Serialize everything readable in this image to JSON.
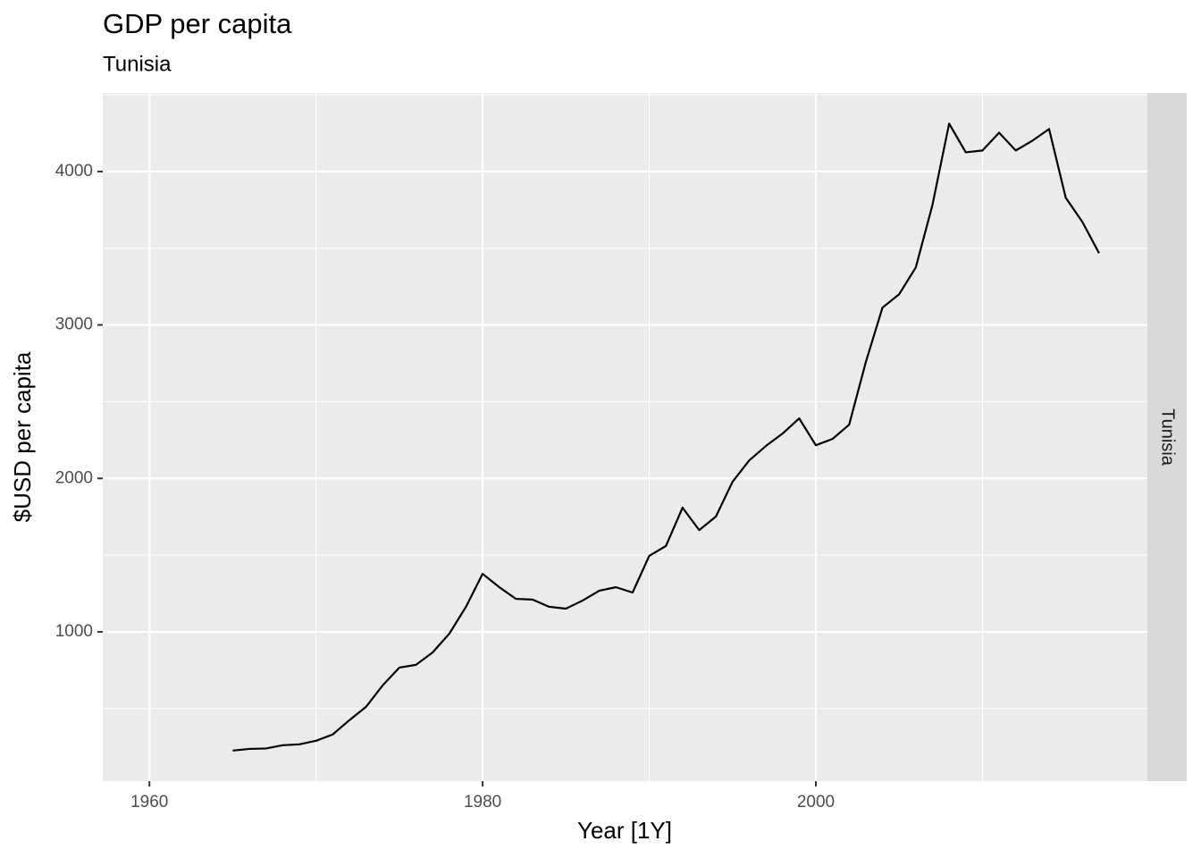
{
  "chart_data": {
    "type": "line",
    "title": "GDP per capita",
    "subtitle": "Tunisia",
    "facet": "Tunisia",
    "x_label": "Year [1Y]",
    "y_label": "$USD per capita",
    "x": [
      1965,
      1966,
      1967,
      1968,
      1969,
      1970,
      1971,
      1972,
      1973,
      1974,
      1975,
      1976,
      1977,
      1978,
      1979,
      1980,
      1981,
      1982,
      1983,
      1984,
      1985,
      1986,
      1987,
      1988,
      1989,
      1990,
      1991,
      1992,
      1993,
      1994,
      1995,
      1996,
      1997,
      1998,
      1999,
      2000,
      2001,
      2002,
      2003,
      2004,
      2005,
      2006,
      2007,
      2008,
      2009,
      2010,
      2011,
      2012,
      2013,
      2014,
      2015,
      2016,
      2017
    ],
    "series": [
      {
        "name": "Tunisia",
        "color": "#000000",
        "values": [
          226,
          237,
          240,
          261,
          267,
          290,
          331,
          424,
          511,
          651,
          767,
          785,
          866,
          988,
          1163,
          1378,
          1291,
          1215,
          1210,
          1163,
          1151,
          1204,
          1268,
          1291,
          1256,
          1495,
          1559,
          1809,
          1663,
          1751,
          1978,
          2117,
          2211,
          2292,
          2391,
          2216,
          2257,
          2350,
          2758,
          3113,
          3200,
          3375,
          3782,
          4312,
          4125,
          4137,
          4253,
          4137,
          4201,
          4277,
          3829,
          3671,
          3468
        ]
      }
    ],
    "xlim": [
      1957.2,
      2019.9
    ],
    "xticks": [
      1960,
      1980,
      2000
    ],
    "ylim": [
      27,
      4512
    ],
    "yticks": [
      1000,
      2000,
      3000,
      4000
    ],
    "grid": true
  }
}
